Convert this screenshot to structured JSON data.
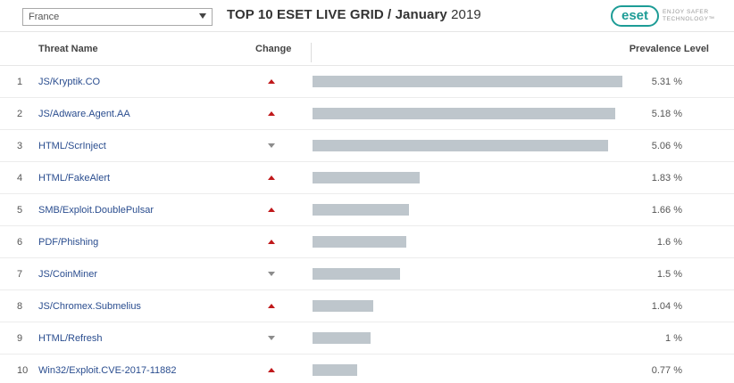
{
  "country_select": {
    "value": "France"
  },
  "title": {
    "main": "TOP 10 ESET LIVE GRID /",
    "month": "January",
    "year": "2019"
  },
  "logo": {
    "text": "eset",
    "tagline": "ENJOY SAFER TECHNOLOGY™"
  },
  "columns": {
    "name": "Threat Name",
    "change": "Change",
    "prevalence": "Prevalence Level"
  },
  "colors": {
    "link": "#2a4d8f",
    "up": "#c0191b",
    "down": "#8c8c8c",
    "bar": "#bec6cc",
    "logo": "#1d9c96"
  },
  "threats": [
    {
      "rank": "1",
      "name": "JS/Kryptik.CO",
      "change": "up",
      "value": 5.31,
      "label": "5.31 %"
    },
    {
      "rank": "2",
      "name": "JS/Adware.Agent.AA",
      "change": "up",
      "value": 5.18,
      "label": "5.18 %"
    },
    {
      "rank": "3",
      "name": "HTML/ScrInject",
      "change": "down",
      "value": 5.06,
      "label": "5.06 %"
    },
    {
      "rank": "4",
      "name": "HTML/FakeAlert",
      "change": "up",
      "value": 1.83,
      "label": "1.83 %"
    },
    {
      "rank": "5",
      "name": "SMB/Exploit.DoublePulsar",
      "change": "up",
      "value": 1.66,
      "label": "1.66 %"
    },
    {
      "rank": "6",
      "name": "PDF/Phishing",
      "change": "up",
      "value": 1.6,
      "label": "1.6 %"
    },
    {
      "rank": "7",
      "name": "JS/CoinMiner",
      "change": "down",
      "value": 1.5,
      "label": "1.5 %"
    },
    {
      "rank": "8",
      "name": "JS/Chromex.Submelius",
      "change": "up",
      "value": 1.04,
      "label": "1.04 %"
    },
    {
      "rank": "9",
      "name": "HTML/Refresh",
      "change": "down",
      "value": 1.0,
      "label": "1 %"
    },
    {
      "rank": "10",
      "name": "Win32/Exploit.CVE-2017-11882",
      "change": "up",
      "value": 0.77,
      "label": "0.77 %"
    }
  ]
}
